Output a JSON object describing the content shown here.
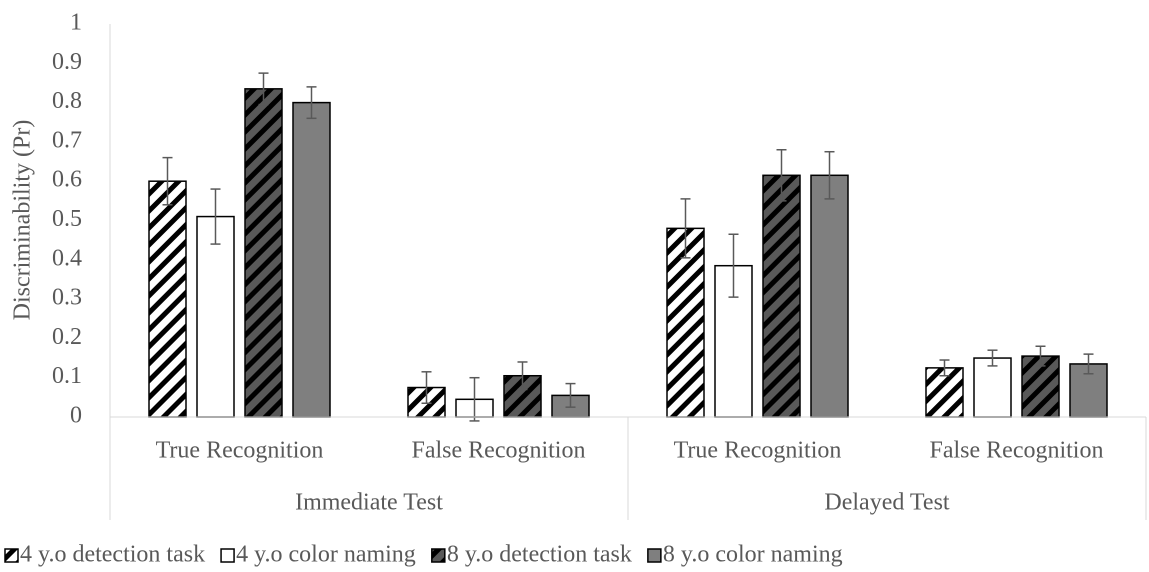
{
  "chart_data": {
    "type": "bar",
    "y_label": "Discriminability (Pr)",
    "groups": [
      "Immediate Test",
      "Delayed Test"
    ],
    "categories": [
      "True Recognition",
      "False Recognition",
      "True Recognition",
      "False Recognition"
    ],
    "series": [
      {
        "name": "4 y.o detection task",
        "color": "#ffffff",
        "hatch": true,
        "values": [
          0.6,
          0.075,
          0.48,
          0.125
        ],
        "errors": [
          0.06,
          0.04,
          0.075,
          0.02
        ]
      },
      {
        "name": "4 y.o color naming",
        "color": "#ffffff",
        "hatch": false,
        "values": [
          0.51,
          0.045,
          0.385,
          0.15
        ],
        "errors": [
          0.07,
          0.055,
          0.08,
          0.02
        ]
      },
      {
        "name": "8 y.o detection task",
        "color": "#595959",
        "hatch": true,
        "values": [
          0.835,
          0.105,
          0.615,
          0.155
        ],
        "errors": [
          0.04,
          0.035,
          0.065,
          0.025
        ]
      },
      {
        "name": "8 y.o color naming",
        "color": "#7f7f7f",
        "hatch": false,
        "values": [
          0.8,
          0.055,
          0.615,
          0.135
        ],
        "errors": [
          0.04,
          0.03,
          0.06,
          0.025
        ]
      }
    ],
    "ylim": [
      0,
      1
    ],
    "yticks": [
      0,
      0.1,
      0.2,
      0.3,
      0.4,
      0.5,
      0.6,
      0.7,
      0.8,
      0.9,
      1
    ]
  }
}
